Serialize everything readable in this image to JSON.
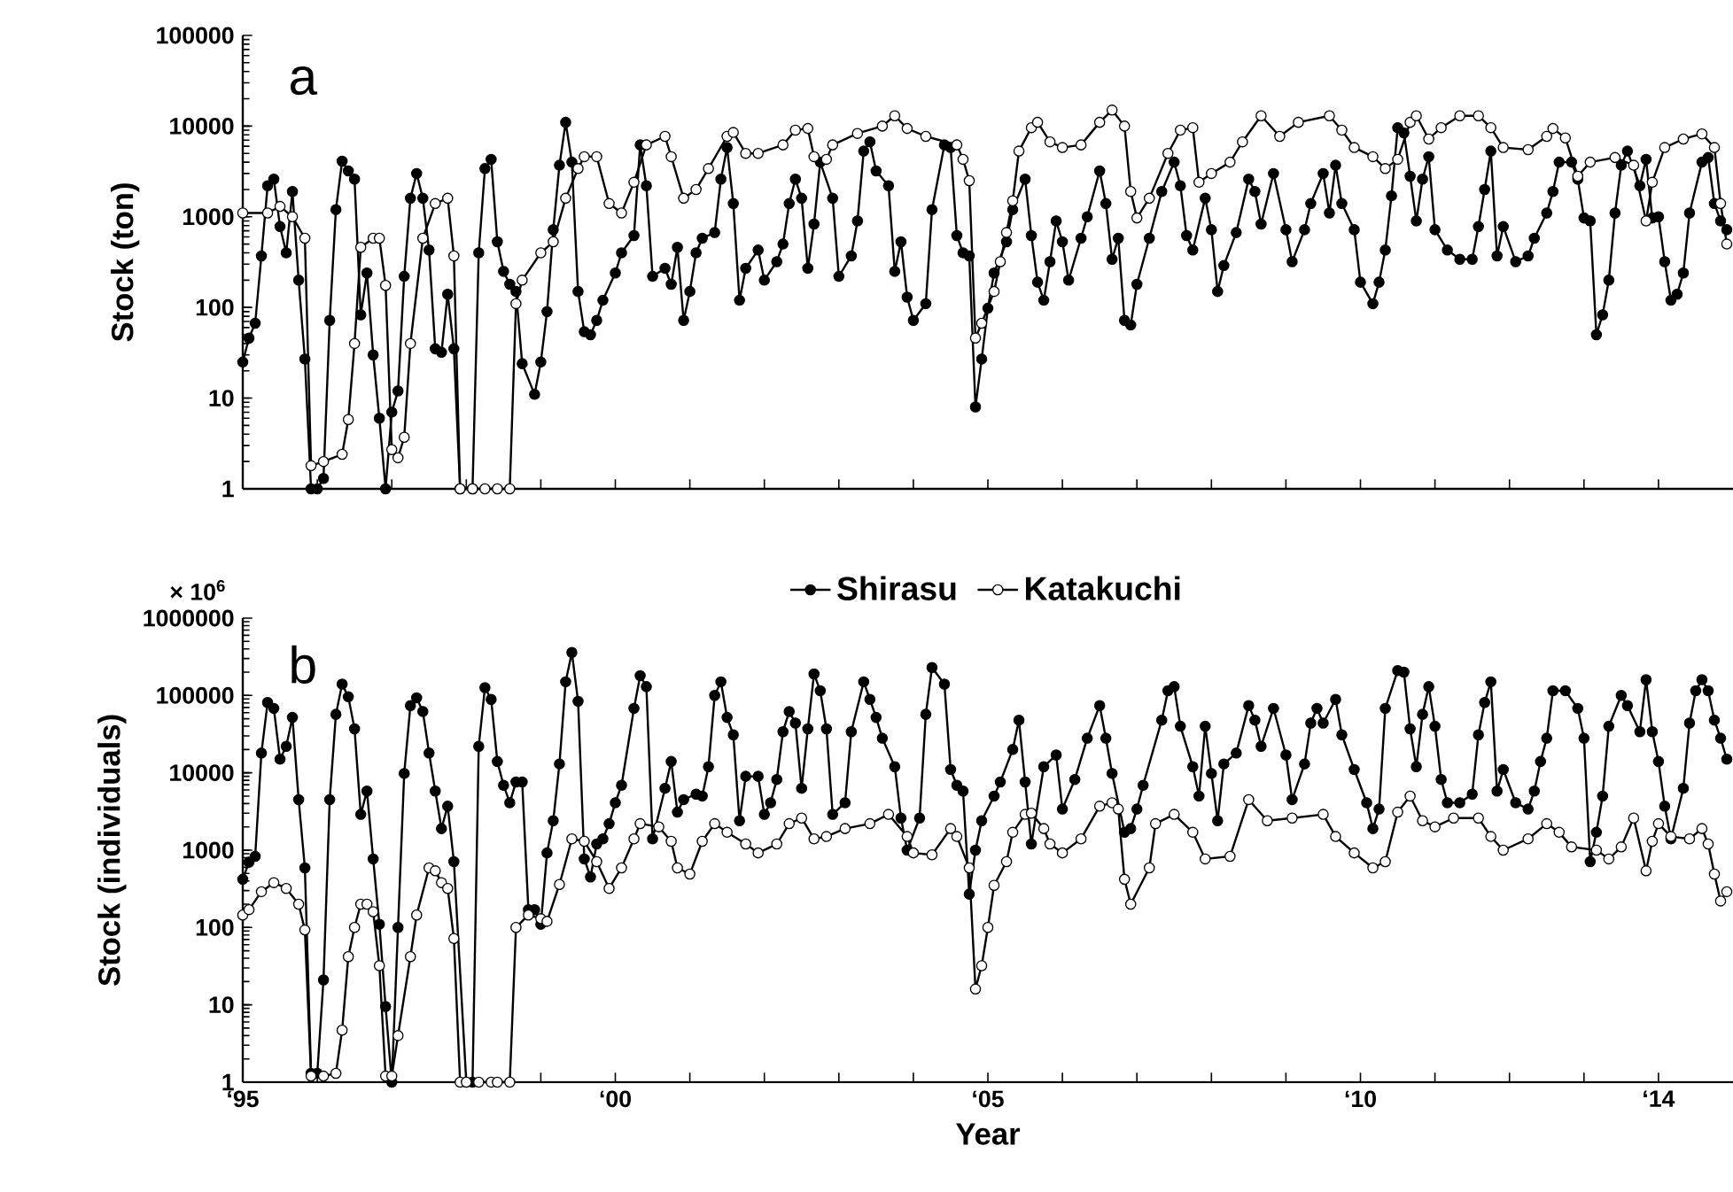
{
  "chart_data": [
    {
      "type": "line",
      "ylabel": "Stock (ton)",
      "annotations": [
        "a"
      ],
      "log": "y",
      "marker": "circle",
      "tick_labels": "y",
      "xlim": [
        "1995-01",
        "2015-01"
      ],
      "ylim": [
        1,
        100000
      ],
      "yticks": [
        1,
        10,
        100,
        1000,
        10000,
        100000
      ],
      "xticks": [
        {
          "value": "1995",
          "label": null
        },
        {
          "value": "1996",
          "label": null
        },
        {
          "value": "1997",
          "label": null
        },
        {
          "value": "1998",
          "label": null
        },
        {
          "value": "1999",
          "label": null
        },
        {
          "value": "2000",
          "label": null
        },
        {
          "value": "2001",
          "label": null
        },
        {
          "value": "2002",
          "label": null
        },
        {
          "value": "2003",
          "label": null
        },
        {
          "value": "2004",
          "label": null
        },
        {
          "value": "2005",
          "label": null
        },
        {
          "value": "2006",
          "label": null
        },
        {
          "value": "2007",
          "label": null
        },
        {
          "value": "2008",
          "label": null
        },
        {
          "value": "2009",
          "label": null
        },
        {
          "value": "2010",
          "label": null
        },
        {
          "value": "2011",
          "label": null
        },
        {
          "value": "2012",
          "label": null
        },
        {
          "value": "2013",
          "label": null
        },
        {
          "value": "2014",
          "label": null
        }
      ],
      "series": [
        {
          "color": "#000000",
          "x": [
            "1995-01",
            "1995-02",
            "1995-03",
            "1995-04",
            "1995-05",
            "1995-06",
            "1995-07",
            "1995-08",
            "1995-09",
            "1995-10",
            "1995-11",
            "1995-12",
            "1996-01",
            "1996-02",
            "1996-03",
            "1996-04",
            "1996-05",
            "1996-06",
            "1996-07",
            "1996-08",
            "1996-09",
            "1996-10",
            "1996-11",
            "1996-12",
            "1997-01",
            "1997-02",
            "1997-03",
            "1997-04",
            "1997-05",
            "1997-06",
            "1997-07",
            "1997-08",
            "1997-09",
            "1997-10",
            "1997-11",
            "1997-12",
            "1998-02",
            "1998-03",
            "1998-04",
            "1998-05",
            "1998-06",
            "1998-07",
            "1998-08",
            "1998-09",
            "1998-10",
            "1998-12",
            "1999-01",
            "1999-02",
            "1999-03",
            "1999-04",
            "1999-05",
            "1999-06",
            "1999-07",
            "1999-08",
            "1999-09",
            "1999-10",
            "1999-11",
            "2000-01",
            "2000-02",
            "2000-04",
            "2000-05",
            "2000-06",
            "2000-07",
            "2000-09",
            "2000-10",
            "2000-11",
            "2000-12",
            "2001-01",
            "2001-02",
            "2001-03",
            "2001-05",
            "2001-06",
            "2001-07",
            "2001-08",
            "2001-09",
            "2001-10",
            "2001-12",
            "2002-01",
            "2002-03",
            "2002-04",
            "2002-05",
            "2002-06",
            "2002-07",
            "2002-08",
            "2002-09",
            "2002-10",
            "2002-12",
            "2003-01",
            "2003-03",
            "2003-04",
            "2003-05",
            "2003-06",
            "2003-07",
            "2003-09",
            "2003-10",
            "2003-11",
            "2003-12",
            "2004-01",
            "2004-03",
            "2004-04",
            "2004-06",
            "2004-07",
            "2004-08",
            "2004-09",
            "2004-10",
            "2004-11",
            "2004-12",
            "2005-01",
            "2005-02",
            "2005-04",
            "2005-05",
            "2005-07",
            "2005-08",
            "2005-09",
            "2005-10",
            "2005-11",
            "2005-12",
            "2006-01",
            "2006-02",
            "2006-04",
            "2006-05",
            "2006-07",
            "2006-08",
            "2006-09",
            "2006-10",
            "2006-11",
            "2006-12",
            "2007-01",
            "2007-03",
            "2007-05",
            "2007-07",
            "2007-08",
            "2007-09",
            "2007-10",
            "2007-12",
            "2008-01",
            "2008-02",
            "2008-03",
            "2008-05",
            "2008-07",
            "2008-08",
            "2008-09",
            "2008-11",
            "2009-01",
            "2009-02",
            "2009-04",
            "2009-05",
            "2009-07",
            "2009-08",
            "2009-09",
            "2009-10",
            "2009-12",
            "2010-01",
            "2010-03",
            "2010-04",
            "2010-05",
            "2010-06",
            "2010-07",
            "2010-08",
            "2010-09",
            "2010-10",
            "2010-11",
            "2010-12",
            "2011-01",
            "2011-03",
            "2011-05",
            "2011-07",
            "2011-08",
            "2011-09",
            "2011-10",
            "2011-11",
            "2011-12",
            "2012-02",
            "2012-04",
            "2012-05",
            "2012-07",
            "2012-08",
            "2012-09",
            "2012-11",
            "2012-12",
            "2013-01",
            "2013-02",
            "2013-03",
            "2013-04",
            "2013-05",
            "2013-06",
            "2013-07",
            "2013-08",
            "2013-10",
            "2013-11",
            "2013-12",
            "2014-01",
            "2014-02",
            "2014-03",
            "2014-04",
            "2014-05",
            "2014-06",
            "2014-08",
            "2014-09",
            "2014-10",
            "2014-11",
            "2014-12"
          ],
          "values": [
            25,
            46,
            67,
            370,
            2200,
            2600,
            780,
            400,
            1900,
            200,
            27,
            1,
            1,
            1.3,
            72,
            1200,
            4100,
            3200,
            2600,
            83,
            240,
            30,
            6,
            1,
            7,
            12,
            220,
            1600,
            3000,
            1600,
            430,
            35,
            32,
            140,
            35,
            1,
            1,
            400,
            3400,
            4300,
            530,
            250,
            180,
            150,
            24,
            11,
            25,
            90,
            720,
            3700,
            11000,
            4000,
            150,
            54,
            50,
            72,
            120,
            240,
            400,
            620,
            6200,
            2200,
            220,
            270,
            180,
            460,
            72,
            150,
            400,
            580,
            670,
            2600,
            5800,
            1400,
            120,
            270,
            430,
            200,
            320,
            500,
            1400,
            2600,
            1600,
            270,
            830,
            4000,
            1600,
            220,
            370,
            900,
            5300,
            6700,
            3200,
            2200,
            250,
            530,
            130,
            72,
            110,
            1200,
            6200,
            5800,
            620,
            400,
            370,
            8,
            27,
            98,
            240,
            530,
            1200,
            2600,
            620,
            190,
            120,
            320,
            900,
            530,
            200,
            580,
            1000,
            3200,
            1400,
            340,
            580,
            72,
            64,
            180,
            580,
            1900,
            4000,
            2200,
            620,
            430,
            1600,
            720,
            150,
            290,
            670,
            2600,
            1900,
            830,
            3000,
            720,
            320,
            720,
            1400,
            3000,
            1100,
            3700,
            1400,
            720,
            190,
            110,
            190,
            430,
            1700,
            9600,
            8400,
            2800,
            900,
            2600,
            4600,
            720,
            430,
            340,
            340,
            780,
            2000,
            5300,
            370,
            780,
            320,
            370,
            580,
            1100,
            1900,
            4000,
            4000,
            2600,
            970,
            900,
            50,
            83,
            200,
            1100,
            3700,
            5300,
            2200,
            4300,
            970,
            1000,
            320,
            120,
            140,
            240,
            1100,
            4000,
            4500,
            1400,
            900,
            720
          ]
        },
        {
          "color": "#ffffff",
          "x": [
            "1995-01",
            "1995-05",
            "1995-07",
            "1995-09",
            "1995-11",
            "1995-12",
            "1996-02",
            "1996-05",
            "1996-06",
            "1996-07",
            "1996-08",
            "1996-10",
            "1996-11",
            "1996-12",
            "1997-01",
            "1997-02",
            "1997-03",
            "1997-04",
            "1997-06",
            "1997-08",
            "1997-10",
            "1997-11",
            "1997-12",
            "1998-02",
            "1998-04",
            "1998-06",
            "1998-08",
            "1998-09",
            "1998-10",
            "1999-01",
            "1999-03",
            "1999-05",
            "1999-07",
            "1999-08",
            "1999-10",
            "1999-12",
            "2000-02",
            "2000-04",
            "2000-06",
            "2000-09",
            "2000-10",
            "2000-12",
            "2001-02",
            "2001-04",
            "2001-07",
            "2001-08",
            "2001-10",
            "2001-12",
            "2002-04",
            "2002-06",
            "2002-08",
            "2002-09",
            "2002-11",
            "2002-12",
            "2003-04",
            "2003-08",
            "2003-10",
            "2003-12",
            "2004-03",
            "2004-08",
            "2004-09",
            "2004-10",
            "2004-11",
            "2004-12",
            "2005-02",
            "2005-03",
            "2005-04",
            "2005-05",
            "2005-06",
            "2005-08",
            "2005-09",
            "2005-11",
            "2006-01",
            "2006-04",
            "2006-07",
            "2006-09",
            "2006-11",
            "2006-12",
            "2007-01",
            "2007-03",
            "2007-06",
            "2007-08",
            "2007-10",
            "2007-11",
            "2008-01",
            "2008-04",
            "2008-06",
            "2008-09",
            "2008-12",
            "2009-03",
            "2009-08",
            "2009-10",
            "2009-12",
            "2010-03",
            "2010-05",
            "2010-07",
            "2010-09",
            "2010-10",
            "2010-12",
            "2011-02",
            "2011-05",
            "2011-08",
            "2011-10",
            "2011-12",
            "2012-04",
            "2012-07",
            "2012-08",
            "2012-10",
            "2012-12",
            "2013-02",
            "2013-06",
            "2013-09",
            "2013-11",
            "2013-12",
            "2014-02",
            "2014-05",
            "2014-08",
            "2014-10",
            "2014-11",
            "2014-12"
          ],
          "values": [
            1100,
            1100,
            1300,
            1000,
            580,
            1.8,
            2,
            2.4,
            5.8,
            40,
            460,
            580,
            580,
            175,
            2.7,
            2.2,
            3.7,
            40,
            580,
            1400,
            1600,
            370,
            1,
            1,
            1,
            1,
            1,
            110,
            200,
            400,
            530,
            1600,
            3400,
            4600,
            4600,
            1400,
            1100,
            2400,
            6200,
            7700,
            4600,
            1600,
            2000,
            3400,
            7700,
            8500,
            5000,
            5000,
            6200,
            9000,
            9400,
            4600,
            4300,
            6200,
            8300,
            10000,
            13000,
            9400,
            7700,
            6200,
            4300,
            2500,
            46,
            67,
            150,
            320,
            670,
            1500,
            5300,
            9600,
            11000,
            6700,
            5800,
            6200,
            11000,
            15000,
            10000,
            1900,
            970,
            1600,
            5000,
            9000,
            9600,
            2400,
            3000,
            4000,
            6700,
            13000,
            7700,
            11000,
            13000,
            9000,
            5800,
            4600,
            3400,
            4300,
            11000,
            13000,
            7200,
            9600,
            13000,
            13000,
            9600,
            5800,
            5500,
            7700,
            9400,
            7400,
            2800,
            4000,
            4500,
            3700,
            900,
            2400,
            5800,
            7200,
            8200,
            5800,
            1400,
            500
          ]
        }
      ]
    },
    {
      "type": "line",
      "xlabel": "Year",
      "ylabel": "Stock (individuals)",
      "annotations": [
        "b",
        "× 10$^{6}$"
      ],
      "log": "y",
      "marker": "circle",
      "legend": "top",
      "xlim": [
        "1995-01",
        "2015-01"
      ],
      "ylim": [
        1,
        1000000
      ],
      "yticks": [
        1,
        10,
        100,
        1000,
        10000,
        100000,
        1000000
      ],
      "xticks": [
        {
          "value": "1995",
          "label": "‘95"
        },
        {
          "value": "1996",
          "label": null
        },
        {
          "value": "1997",
          "label": null
        },
        {
          "value": "1998",
          "label": null
        },
        {
          "value": "1999",
          "label": null
        },
        {
          "value": "2000",
          "label": "‘00"
        },
        {
          "value": "2001",
          "label": null
        },
        {
          "value": "2002",
          "label": null
        },
        {
          "value": "2003",
          "label": null
        },
        {
          "value": "2004",
          "label": null
        },
        {
          "value": "2005",
          "label": "‘05"
        },
        {
          "value": "2006",
          "label": null
        },
        {
          "value": "2007",
          "label": null
        },
        {
          "value": "2008",
          "label": null
        },
        {
          "value": "2009",
          "label": null
        },
        {
          "value": "2010",
          "label": "‘10"
        },
        {
          "value": "2011",
          "label": null
        },
        {
          "value": "2012",
          "label": null
        },
        {
          "value": "2013",
          "label": null
        },
        {
          "value": "2014",
          "label": "‘14"
        }
      ],
      "series": [
        {
          "name": "Shirasu",
          "color": "#000000",
          "x": [
            "1995-01",
            "1995-02",
            "1995-03",
            "1995-04",
            "1995-05",
            "1995-06",
            "1995-07",
            "1995-08",
            "1995-09",
            "1995-10",
            "1995-11",
            "1995-12",
            "1996-01",
            "1996-02",
            "1996-03",
            "1996-04",
            "1996-05",
            "1996-06",
            "1996-07",
            "1996-08",
            "1996-09",
            "1996-10",
            "1996-11",
            "1996-12",
            "1997-01",
            "1997-02",
            "1997-03",
            "1997-04",
            "1997-05",
            "1997-06",
            "1997-07",
            "1997-08",
            "1997-09",
            "1997-10",
            "1997-11",
            "1998-01",
            "1998-02",
            "1998-03",
            "1998-04",
            "1998-05",
            "1998-06",
            "1998-07",
            "1998-08",
            "1998-09",
            "1998-10",
            "1998-11",
            "1998-12",
            "1999-01",
            "1999-02",
            "1999-03",
            "1999-04",
            "1999-05",
            "1999-06",
            "1999-07",
            "1999-08",
            "1999-09",
            "1999-10",
            "1999-11",
            "1999-12",
            "2000-01",
            "2000-02",
            "2000-04",
            "2000-05",
            "2000-06",
            "2000-07",
            "2000-09",
            "2000-10",
            "2000-11",
            "2000-12",
            "2001-02",
            "2001-03",
            "2001-04",
            "2001-05",
            "2001-06",
            "2001-07",
            "2001-08",
            "2001-09",
            "2001-10",
            "2001-12",
            "2002-01",
            "2002-02",
            "2002-03",
            "2002-04",
            "2002-05",
            "2002-06",
            "2002-07",
            "2002-08",
            "2002-09",
            "2002-10",
            "2002-11",
            "2002-12",
            "2003-02",
            "2003-03",
            "2003-05",
            "2003-06",
            "2003-07",
            "2003-08",
            "2003-10",
            "2003-11",
            "2003-12",
            "2004-02",
            "2004-03",
            "2004-04",
            "2004-06",
            "2004-07",
            "2004-08",
            "2004-09",
            "2004-10",
            "2004-11",
            "2004-12",
            "2005-02",
            "2005-03",
            "2005-05",
            "2005-06",
            "2005-07",
            "2005-08",
            "2005-10",
            "2005-12",
            "2006-01",
            "2006-03",
            "2006-05",
            "2006-07",
            "2006-08",
            "2006-09",
            "2006-11",
            "2006-12",
            "2007-01",
            "2007-02",
            "2007-05",
            "2007-06",
            "2007-07",
            "2007-08",
            "2007-10",
            "2007-11",
            "2007-12",
            "2008-01",
            "2008-02",
            "2008-03",
            "2008-05",
            "2008-07",
            "2008-08",
            "2008-09",
            "2008-11",
            "2009-01",
            "2009-02",
            "2009-04",
            "2009-05",
            "2009-06",
            "2009-07",
            "2009-09",
            "2009-10",
            "2009-12",
            "2010-02",
            "2010-03",
            "2010-04",
            "2010-05",
            "2010-07",
            "2010-08",
            "2010-09",
            "2010-10",
            "2010-11",
            "2010-12",
            "2011-01",
            "2011-02",
            "2011-03",
            "2011-05",
            "2011-07",
            "2011-08",
            "2011-09",
            "2011-10",
            "2011-11",
            "2011-12",
            "2012-02",
            "2012-04",
            "2012-05",
            "2012-06",
            "2012-07",
            "2012-08",
            "2012-10",
            "2012-12",
            "2013-01",
            "2013-02",
            "2013-03",
            "2013-04",
            "2013-05",
            "2013-07",
            "2013-08",
            "2013-10",
            "2013-11",
            "2013-12",
            "2014-01",
            "2014-02",
            "2014-03",
            "2014-05",
            "2014-06",
            "2014-07",
            "2014-08",
            "2014-09",
            "2014-10",
            "2014-11",
            "2014-12"
          ],
          "values": [
            420,
            700,
            830,
            18000,
            81000,
            68000,
            15000,
            22000,
            52000,
            4500,
            590,
            1.3,
            1.3,
            21,
            4500,
            57000,
            140000,
            96000,
            37000,
            2900,
            5800,
            770,
            110,
            9.5,
            1,
            100,
            9800,
            74000,
            93000,
            62000,
            18000,
            5800,
            1900,
            3700,
            710,
            1,
            1,
            22000,
            126000,
            89000,
            14000,
            6900,
            4100,
            7600,
            7600,
            170,
            170,
            110,
            920,
            2400,
            13000,
            150000,
            360000,
            84000,
            770,
            450,
            1200,
            1400,
            2200,
            4100,
            6900,
            68000,
            180000,
            130000,
            1400,
            6300,
            14000,
            3100,
            4500,
            5300,
            5000,
            12000,
            100000,
            150000,
            52000,
            31000,
            2400,
            9000,
            9000,
            2900,
            4100,
            8200,
            34000,
            62000,
            44000,
            6300,
            37000,
            190000,
            115000,
            37000,
            2900,
            4100,
            34000,
            150000,
            89000,
            52000,
            28000,
            12000,
            2600,
            1000,
            2600,
            57000,
            230000,
            140000,
            11000,
            6900,
            5800,
            270,
            1000,
            2400,
            5000,
            7600,
            20000,
            48000,
            7600,
            1200,
            12000,
            17000,
            3400,
            8200,
            28000,
            74000,
            28000,
            9800,
            1700,
            1900,
            3400,
            6900,
            48000,
            115000,
            130000,
            40000,
            12000,
            5000,
            40000,
            9800,
            2400,
            13000,
            18000,
            74000,
            48000,
            22000,
            68000,
            17000,
            4500,
            13000,
            44000,
            68000,
            44000,
            89000,
            31000,
            11000,
            4100,
            1900,
            3400,
            68000,
            210000,
            200000,
            37000,
            12000,
            57000,
            130000,
            40000,
            8200,
            4100,
            4100,
            5300,
            31000,
            81000,
            150000,
            5800,
            11000,
            4100,
            3400,
            5800,
            14000,
            28000,
            115000,
            115000,
            68000,
            28000,
            710,
            1700,
            5000,
            40000,
            100000,
            74000,
            34000,
            160000,
            34000,
            14000,
            3700,
            1400,
            6300,
            44000,
            115000,
            160000,
            115000,
            48000,
            28000,
            15000
          ]
        },
        {
          "name": "Katakuchi",
          "color": "#ffffff",
          "x": [
            "1995-01",
            "1995-02",
            "1995-04",
            "1995-06",
            "1995-08",
            "1995-10",
            "1995-11",
            "1995-12",
            "1996-02",
            "1996-04",
            "1996-05",
            "1996-06",
            "1996-07",
            "1996-08",
            "1996-09",
            "1996-10",
            "1996-11",
            "1996-12",
            "1997-01",
            "1997-02",
            "1997-04",
            "1997-05",
            "1997-07",
            "1997-08",
            "1997-09",
            "1997-10",
            "1997-11",
            "1997-12",
            "1998-01",
            "1998-03",
            "1998-05",
            "1998-06",
            "1998-08",
            "1998-09",
            "1998-11",
            "1999-01",
            "1999-02",
            "1999-04",
            "1999-06",
            "1999-08",
            "1999-10",
            "1999-12",
            "2000-02",
            "2000-04",
            "2000-05",
            "2000-08",
            "2000-10",
            "2000-11",
            "2001-01",
            "2001-03",
            "2001-05",
            "2001-07",
            "2001-10",
            "2001-12",
            "2002-03",
            "2002-05",
            "2002-07",
            "2002-09",
            "2002-11",
            "2003-02",
            "2003-06",
            "2003-09",
            "2003-12",
            "2004-01",
            "2004-04",
            "2004-07",
            "2004-08",
            "2004-10",
            "2004-11",
            "2004-12",
            "2005-01",
            "2005-02",
            "2005-04",
            "2005-05",
            "2005-07",
            "2005-08",
            "2005-10",
            "2005-11",
            "2006-01",
            "2006-04",
            "2006-07",
            "2006-09",
            "2006-10",
            "2006-11",
            "2006-12",
            "2007-03",
            "2007-04",
            "2007-07",
            "2007-10",
            "2007-12",
            "2008-04",
            "2008-07",
            "2008-10",
            "2009-02",
            "2009-07",
            "2009-09",
            "2009-12",
            "2010-03",
            "2010-05",
            "2010-07",
            "2010-09",
            "2010-11",
            "2011-01",
            "2011-04",
            "2011-08",
            "2011-10",
            "2011-12",
            "2012-04",
            "2012-07",
            "2012-09",
            "2012-11",
            "2013-03",
            "2013-05",
            "2013-07",
            "2013-09",
            "2013-11",
            "2013-12",
            "2014-01",
            "2014-03",
            "2014-06",
            "2014-08",
            "2014-09",
            "2014-10",
            "2014-11",
            "2014-12"
          ],
          "values": [
            145,
            170,
            290,
            380,
            320,
            200,
            93,
            1.2,
            1.2,
            1.3,
            4.7,
            42,
            100,
            200,
            200,
            160,
            32,
            1.2,
            1.2,
            4,
            42,
            145,
            590,
            540,
            380,
            320,
            72,
            1,
            1,
            1,
            1,
            1,
            1,
            100,
            145,
            130,
            120,
            360,
            1400,
            1300,
            710,
            320,
            590,
            1400,
            2200,
            2000,
            1300,
            590,
            490,
            1300,
            2200,
            1700,
            1200,
            920,
            1200,
            2200,
            2600,
            1400,
            1500,
            1900,
            2200,
            2900,
            1500,
            920,
            870,
            1900,
            1500,
            590,
            16,
            32,
            100,
            350,
            710,
            1700,
            2900,
            3000,
            1900,
            1200,
            920,
            1400,
            3700,
            4100,
            3400,
            420,
            200,
            590,
            2200,
            2900,
            1700,
            770,
            830,
            4500,
            2400,
            2600,
            2900,
            1500,
            920,
            590,
            710,
            3100,
            5000,
            2400,
            2000,
            2600,
            2600,
            1500,
            1000,
            1400,
            2200,
            1700,
            1100,
            1000,
            770,
            1100,
            2600,
            540,
            1300,
            2200,
            1500,
            1400,
            1900,
            1200,
            490,
            220,
            290
          ]
        }
      ]
    }
  ]
}
